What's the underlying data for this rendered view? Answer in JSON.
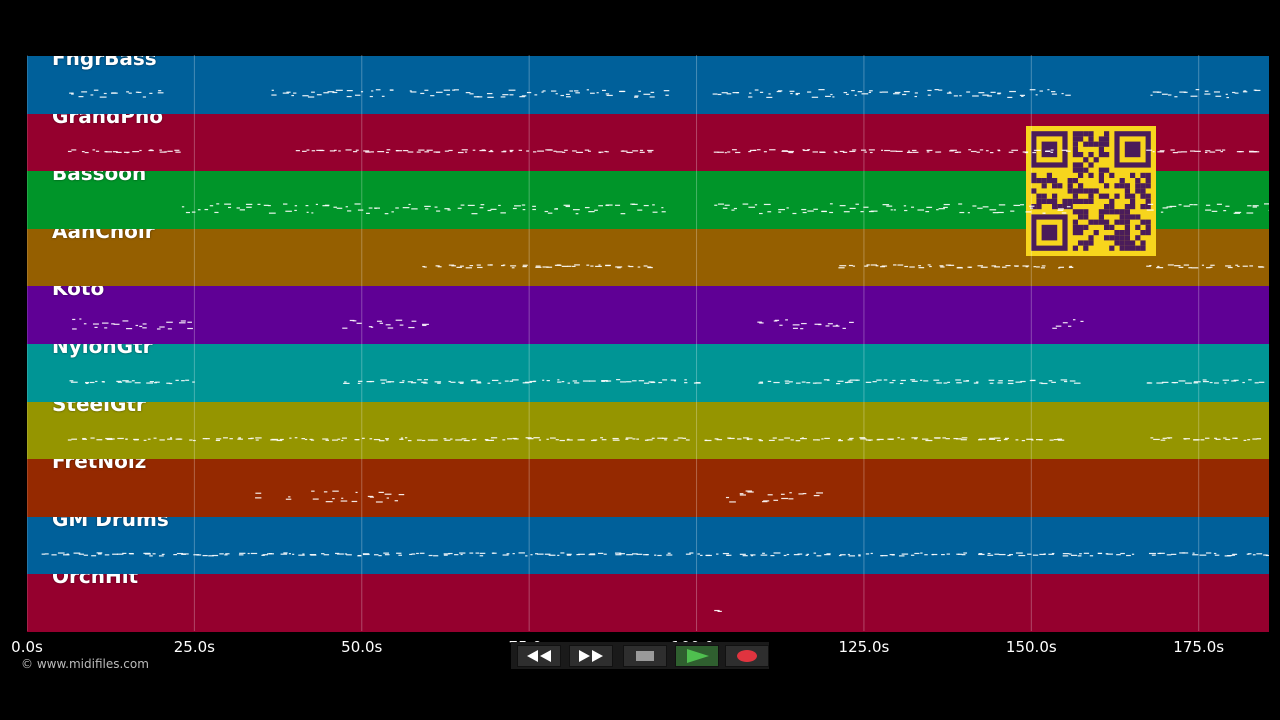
{
  "tracks": [
    {
      "name": "FngrBass",
      "color": "#00609a"
    },
    {
      "name": "GrandPno",
      "color": "#95002e"
    },
    {
      "name": "Bassoon",
      "color": "#009529"
    },
    {
      "name": "AahChoir",
      "color": "#955f00"
    },
    {
      "name": "Koto",
      "color": "#5f0095"
    },
    {
      "name": "NylonGtr",
      "color": "#009595"
    },
    {
      "name": "SteelGtr",
      "color": "#959500"
    },
    {
      "name": "FretNoiz",
      "color": "#952900"
    },
    {
      "name": "GM Drums",
      "color": "#00609a"
    },
    {
      "name": "OrchHit",
      "color": "#95002e"
    }
  ],
  "timeline": {
    "duration_s": 185.5,
    "ticks": [
      "0.0s",
      "25.0s",
      "50.0s",
      "75.0s",
      "100.0s",
      "125.0s",
      "150.0s",
      "175.0s"
    ],
    "tick_values": [
      0,
      25,
      50,
      75,
      100,
      125,
      150,
      175
    ]
  },
  "copyright": "© www.midifiles.com",
  "transport": {
    "buttons": [
      {
        "name": "rewind-button",
        "icon": "rewind-icon"
      },
      {
        "name": "fast-forward-button",
        "icon": "fast-forward-icon"
      },
      {
        "name": "stop-button",
        "icon": "stop-icon"
      },
      {
        "name": "play-button",
        "icon": "play-icon"
      },
      {
        "name": "record-button",
        "icon": "record-icon"
      }
    ],
    "colors": {
      "play": "#3f9a3f",
      "record": "#e0343f",
      "stop": "#9a9a9a"
    }
  },
  "qr_colors": {
    "bg": "#f7d51d",
    "fg": "#4a1c5a"
  }
}
